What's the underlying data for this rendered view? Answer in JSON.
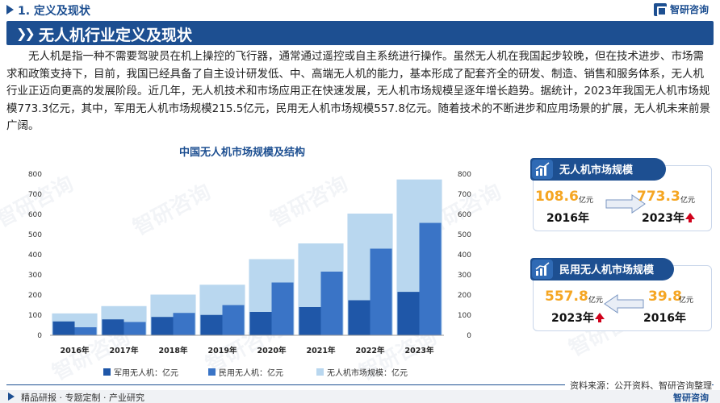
{
  "header": {
    "section": "1. 定义及现状",
    "logo": "智研咨询"
  },
  "banner": {
    "title": "无人机行业定义及现状"
  },
  "paragraph": "无人机是指一种不需要驾驶员在机上操控的飞行器，通常通过遥控或自主系统进行操作。虽然无人机在我国起步较晚，但在技术进步、市场需求和政策支持下，目前，我国已经具备了自主设计研发低、中、高端无人机的能力，基本形成了配套齐全的研发、制造、销售和服务体系，无人机行业正迈向更高的发展阶段。近几年，无人机技术和市场应用正在快速发展，无人机市场规模呈逐年增长趋势。据统计，2023年我国无人机市场规模773.3亿元，其中，军用无人机市场规模215.5亿元，民用无人机市场规模557.8亿元。随着技术的不断进步和应用场景的扩展，无人机未来前景广阔。",
  "watermark": "智研咨询",
  "chart_data": {
    "type": "bar",
    "title": "中国无人机市场规模及结构",
    "categories": [
      "2016年",
      "2017年",
      "2018年",
      "2019年",
      "2020年",
      "2021年",
      "2022年",
      "2023年"
    ],
    "series": [
      {
        "name": "军用无人机：亿元",
        "color": "#1f57a8",
        "values": [
          68.8,
          79,
          91,
          101,
          116,
          140,
          174,
          215.5
        ]
      },
      {
        "name": "民用无人机：亿元",
        "color": "#3a74c6",
        "values": [
          39.8,
          66,
          111,
          150,
          262,
          316,
          430,
          557.8
        ]
      },
      {
        "name": "无人机市场规模：亿元",
        "color": "#b9d7ef",
        "values": [
          108.6,
          145,
          202,
          251,
          378,
          456,
          604,
          773.3
        ]
      }
    ],
    "ylim": [
      0,
      800
    ],
    "yticks": [
      0,
      100,
      200,
      300,
      400,
      500,
      600,
      700,
      800
    ],
    "legend_position": "bottom"
  },
  "card1": {
    "label": "无人机市场规模",
    "from_value": "108.6",
    "from_unit": "亿元",
    "from_year": "2016年",
    "to_value": "773.3",
    "to_unit": "亿元",
    "to_year": "2023年"
  },
  "card2": {
    "label": "民用无人机市场规模",
    "left_value": "557.8",
    "left_unit": "亿元",
    "left_year": "2023年",
    "right_value": "39.8",
    "right_unit": "亿元",
    "right_year": "2016年"
  },
  "footer": {
    "source": "资料来源：公开资料、智研咨询整理",
    "tagline": "精品研报 · 专题定制 · 产业研究",
    "logo": "智研咨询"
  }
}
